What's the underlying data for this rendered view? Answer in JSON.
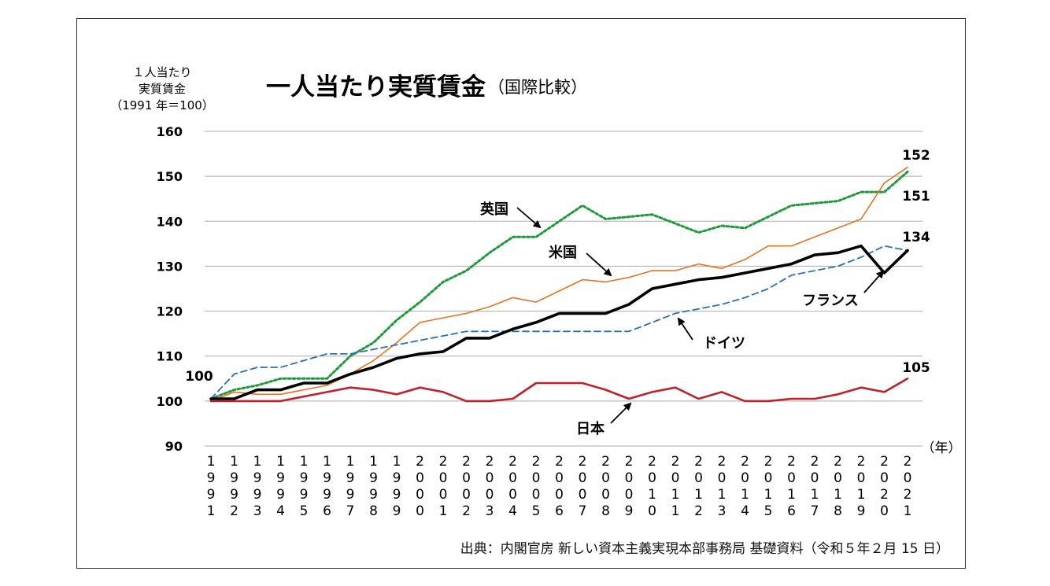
{
  "chart_data": {
    "type": "line",
    "title": "一人当たり実質賃金",
    "subtitle": "（国際比較）",
    "ylabel_lines": [
      "１人当たり",
      "実質賃金",
      "（1991 年＝100）"
    ],
    "xlabel": "（年）",
    "ylim": [
      90,
      160
    ],
    "yticks": [
      "90",
      "100",
      "110",
      "120",
      "130",
      "140",
      "150",
      "160"
    ],
    "grid": true,
    "categories": [
      "1991",
      "1992",
      "1993",
      "1994",
      "1995",
      "1996",
      "1997",
      "1998",
      "1999",
      "2000",
      "2001",
      "2002",
      "2003",
      "2004",
      "2005",
      "2006",
      "2007",
      "2008",
      "2009",
      "2010",
      "2011",
      "2012",
      "2013",
      "2014",
      "2015",
      "2016",
      "2017",
      "2018",
      "2019",
      "2020",
      "2021"
    ],
    "series": [
      {
        "name": "英国",
        "color": "#1e9a3a",
        "style": "dotted",
        "values": [
          100.5,
          102.5,
          103.5,
          105,
          105,
          105,
          110,
          113,
          118,
          122,
          126.5,
          129,
          133,
          136.5,
          136.5,
          140,
          143.5,
          140.5,
          141,
          141.5,
          139.5,
          137.5,
          139,
          138.5,
          141,
          143.5,
          144,
          144.5,
          146.5,
          146.5,
          151
        ]
      },
      {
        "name": "米国",
        "color": "#e8731f",
        "style": "thin",
        "values": [
          100,
          102,
          101.5,
          101.5,
          102.5,
          103.5,
          106,
          109,
          113,
          117.5,
          118.5,
          119.5,
          121,
          123,
          122,
          124.5,
          127,
          126.5,
          127.5,
          129,
          129,
          130.5,
          129.5,
          131.5,
          134.5,
          134.5,
          136.5,
          138.5,
          140.5,
          148.5,
          152
        ]
      },
      {
        "name": "フランス",
        "color": "#2b6fb5",
        "style": "dashed",
        "values": [
          100.5,
          106,
          107.5,
          107.5,
          109,
          110.5,
          110.5,
          111.5,
          112.5,
          113.5,
          114.5,
          115.5,
          115.5,
          115.5,
          115.5,
          115.5,
          115.5,
          115.5,
          115.5,
          117.5,
          119.5,
          120.5,
          121.5,
          123,
          125,
          128,
          129,
          130,
          132,
          134.5,
          133.5
        ]
      },
      {
        "name": "ドイツ",
        "color": "#000000",
        "style": "bold",
        "values": [
          100.5,
          100.5,
          102.5,
          102.5,
          104,
          104,
          106,
          107.5,
          109.5,
          110.5,
          111,
          114,
          114,
          116,
          117.5,
          119.5,
          119.5,
          119.5,
          121.5,
          125,
          126,
          127,
          127.5,
          128.5,
          129.5,
          130.5,
          132.5,
          133,
          134.5,
          128.5,
          133.5
        ]
      },
      {
        "name": "日本",
        "color": "#c0202a",
        "style": "medium",
        "values": [
          100,
          100,
          100,
          100,
          101,
          102,
          103,
          102.5,
          101.5,
          103,
          102,
          100,
          100,
          100.5,
          104,
          104,
          104,
          102.5,
          100.5,
          102,
          103,
          100.5,
          102,
          100,
          100,
          100.5,
          100.5,
          101.5,
          103,
          102,
          105
        ]
      }
    ],
    "annotations": [
      {
        "text": "英国",
        "series": "英国"
      },
      {
        "text": "米国",
        "series": "米国"
      },
      {
        "text": "フランス",
        "series": "フランス"
      },
      {
        "text": "ドイツ",
        "series": "ドイツ"
      },
      {
        "text": "日本",
        "series": "日本"
      }
    ],
    "end_values": [
      "152",
      "151",
      "134",
      "105"
    ],
    "start_value": "100"
  },
  "source": "出典：内閣官房 新しい資本主義実現本部事務局 基礎資料（令和５年２月 15 日）"
}
